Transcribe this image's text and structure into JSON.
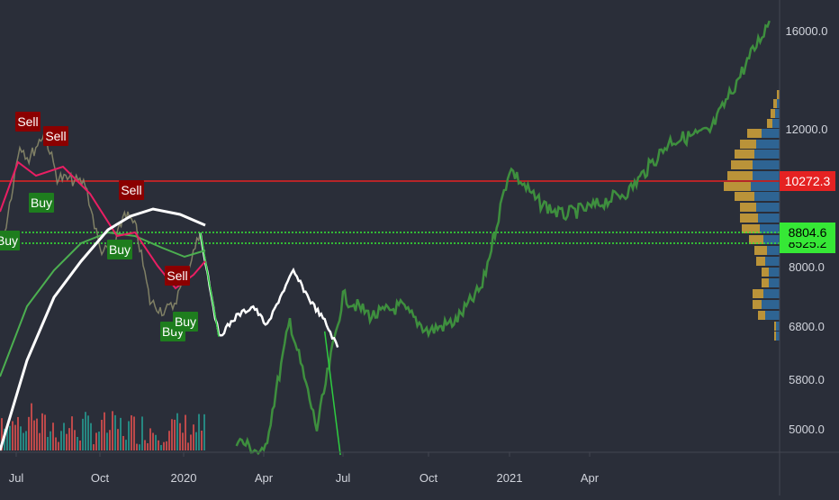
{
  "colors": {
    "background": "#2a2e39",
    "price_line": "#3e8f3e",
    "projection_line": "#ffffff",
    "projection_drop": "#2ecc40",
    "sma_fast": "#e91e63",
    "sma_slow": "#4caf50",
    "resistance": "#e52222",
    "support": "#36e836",
    "sell_badge": "#8b0000",
    "buy_badge": "#1e7d1e",
    "volume_up": "#26a69a",
    "volume_down": "#ef5350",
    "vp_gold": "#d4a53a",
    "vp_blue": "#2f6da3"
  },
  "chart_data": {
    "type": "line",
    "title": "",
    "xlabel": "",
    "ylabel": "",
    "x_ticks": [
      "Jul",
      "Oct",
      "2020",
      "Apr",
      "Jul",
      "Oct",
      "2021",
      "Apr"
    ],
    "y_ticks": [
      "16000.0",
      "12000.0",
      "8000.0",
      "6800.0",
      "5800.0",
      "5000.0"
    ],
    "ylim": [
      4500,
      17200
    ],
    "xlim": [
      "2019-06-25",
      "2021-08-20"
    ],
    "price_labels": [
      {
        "id": "resistance",
        "value": 10272.3,
        "text": "10272.3"
      },
      {
        "id": "support_upper",
        "value": 8804.6,
        "text": "8804.6"
      },
      {
        "id": "support_lower",
        "value": 8525.2,
        "text": "8525.2"
      }
    ],
    "series": [
      {
        "type": "line",
        "x": [
          "2019-06-25",
          "2019-07-05",
          "2019-07-15",
          "2019-08-01",
          "2019-08-15",
          "2019-09-01",
          "2019-09-15",
          "2019-10-01",
          "2019-10-15",
          "2019-10-28",
          "2019-11-10",
          "2019-11-25",
          "2019-12-10",
          "2019-12-20",
          "2020-01-01",
          "2020-01-10",
          "2020-01-20"
        ],
        "values": [
          8800,
          11500,
          11000,
          11900,
          10400,
          10300,
          10200,
          8400,
          8300,
          9400,
          8900,
          7300,
          7100,
          7200,
          7700,
          8200,
          8800
        ]
      },
      {
        "type": "line",
        "x": [
          "2020-03-01",
          "2020-04-01",
          "2020-05-01",
          "2020-06-01",
          "2020-07-01",
          "2020-08-01",
          "2020-09-01",
          "2020-10-01",
          "2020-11-01",
          "2020-12-01",
          "2021-01-01",
          "2021-02-01",
          "2021-03-01",
          "2021-04-01",
          "2021-05-01",
          "2021-06-01",
          "2021-07-01",
          "2021-08-01",
          "2021-08-15"
        ],
        "values": [
          4800,
          4500,
          4200,
          5000,
          7400,
          7000,
          7200,
          6700,
          6900,
          7600,
          10700,
          9700,
          9300,
          9500,
          10000,
          11600,
          11900,
          15000,
          16400
        ]
      },
      {
        "type": "line",
        "x": [
          "2020-01-20",
          "2020-02-10",
          "2020-03-01",
          "2020-03-20",
          "2020-04-05",
          "2020-04-20",
          "2020-05-05",
          "2020-05-25",
          "2020-06-10",
          "2020-06-25"
        ],
        "values": [
          8800,
          6600,
          7000,
          7200,
          6800,
          7400,
          7900,
          7300,
          6900,
          6400
        ]
      }
    ]
  },
  "signals": [
    {
      "label": "Sell",
      "kind": "sell"
    },
    {
      "label": "Sell",
      "kind": "sell"
    },
    {
      "label": "Sell",
      "kind": "sell"
    },
    {
      "label": "Sell",
      "kind": "sell"
    },
    {
      "label": "Buy",
      "kind": "buy"
    },
    {
      "label": "Buy",
      "kind": "buy"
    },
    {
      "label": "Buy",
      "kind": "buy"
    },
    {
      "label": "Buy",
      "kind": "buy"
    },
    {
      "label": "Buy",
      "kind": "buy"
    }
  ]
}
